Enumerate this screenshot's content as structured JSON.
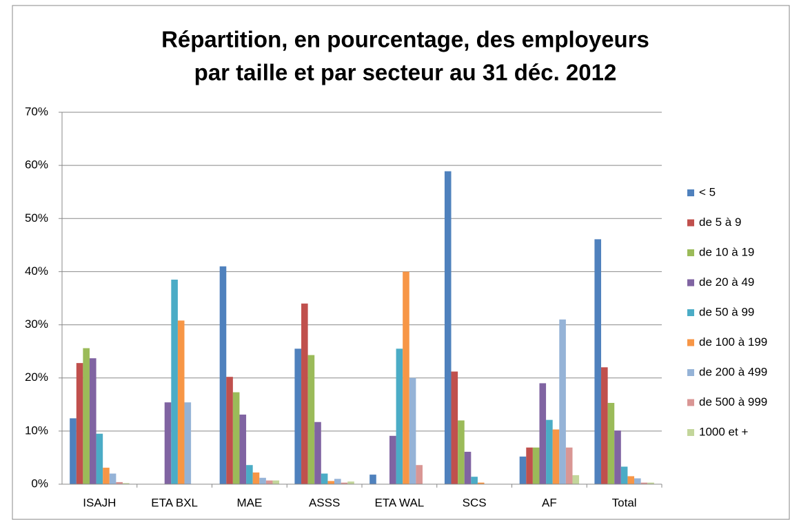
{
  "chart_data": {
    "type": "bar",
    "title": [
      "Répartition, en pourcentage, des employeurs",
      "par taille et par secteur au 31 déc. 2012"
    ],
    "categories": [
      "ISAJH",
      "ETA BXL",
      "MAE",
      "ASSS",
      "ETA WAL",
      "SCS",
      "AF",
      "Total"
    ],
    "series": [
      {
        "name": "< 5",
        "color": "#4F81BD",
        "values": [
          12.4,
          0,
          41.0,
          25.5,
          1.8,
          58.9,
          5.2,
          46.1
        ]
      },
      {
        "name": "de 5 à 9",
        "color": "#C0504D",
        "values": [
          22.8,
          0,
          20.2,
          34.0,
          0,
          21.2,
          6.9,
          22.0
        ]
      },
      {
        "name": "de 10 à 19",
        "color": "#9BBB59",
        "values": [
          25.6,
          0,
          17.3,
          24.3,
          0,
          12.0,
          6.9,
          15.3
        ]
      },
      {
        "name": "de 20 à 49",
        "color": "#8064A2",
        "values": [
          23.7,
          15.4,
          13.1,
          11.7,
          9.1,
          6.1,
          19.0,
          10.1
        ]
      },
      {
        "name": "de 50 à 99",
        "color": "#4BACC6",
        "values": [
          9.5,
          38.5,
          3.6,
          2.0,
          25.5,
          1.4,
          12.1,
          3.3
        ]
      },
      {
        "name": "de 100 à 199",
        "color": "#F79646",
        "values": [
          3.1,
          30.8,
          2.2,
          0.6,
          40.0,
          0.3,
          10.3,
          1.5
        ]
      },
      {
        "name": "de 200 à 499",
        "color": "#95B3D7",
        "values": [
          2.0,
          15.4,
          1.2,
          1.0,
          20.0,
          0,
          31.0,
          1.1
        ]
      },
      {
        "name": "de 500 à 999",
        "color": "#D99694",
        "values": [
          0.4,
          0,
          0.7,
          0.3,
          3.6,
          0,
          6.9,
          0.3
        ]
      },
      {
        "name": "1000 et +",
        "color": "#C3D69B",
        "values": [
          0.2,
          0,
          0.7,
          0.5,
          0,
          0,
          1.7,
          0.3
        ]
      }
    ],
    "ylim": [
      0,
      70
    ],
    "yticks": [
      {
        "value": 0,
        "label": "0%"
      },
      {
        "value": 10,
        "label": "10%"
      },
      {
        "value": 20,
        "label": "20%"
      },
      {
        "value": 30,
        "label": "30%"
      },
      {
        "value": 40,
        "label": "40%"
      },
      {
        "value": 50,
        "label": "50%"
      },
      {
        "value": 60,
        "label": "60%"
      },
      {
        "value": 70,
        "label": "70%"
      }
    ],
    "grid": true,
    "legend": "right"
  }
}
